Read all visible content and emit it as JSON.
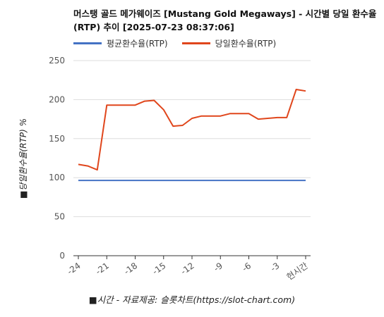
{
  "chart_data": {
    "type": "line",
    "title": "머스탱 골드 메가웨이즈 [Mustang Gold Megaways] - 시간별 당일 환수율(RTP) 추이 [2025-07-23 08:37:06]",
    "ylabel": "■당일환수율(RTP) %",
    "xlabel": "■시간 - 자료제공: 슬롯차트(https://slot-chart.com)",
    "ylim": [
      0,
      250
    ],
    "yticks": [
      0,
      50,
      100,
      150,
      200,
      250
    ],
    "xticks": [
      {
        "x": -24,
        "label": "-24"
      },
      {
        "x": -21,
        "label": "-21"
      },
      {
        "x": -18,
        "label": "-18"
      },
      {
        "x": -15,
        "label": "-15"
      },
      {
        "x": -12,
        "label": "-12"
      },
      {
        "x": -9,
        "label": "-9"
      },
      {
        "x": -6,
        "label": "-6"
      },
      {
        "x": -3,
        "label": "-3"
      },
      {
        "x": 0,
        "label": "현시간"
      }
    ],
    "xlim": [
      -24,
      0
    ],
    "legend": "top-left",
    "grid": "horizontal",
    "series": [
      {
        "name": "평균환수율(RTP)",
        "color": "#4472c4",
        "x": [
          -24,
          0
        ],
        "values": [
          96.5,
          96.5
        ]
      },
      {
        "name": "당일환수율(RTP)",
        "color": "#e0461c",
        "x": [
          -24,
          -23,
          -22,
          -21,
          -20,
          -19,
          -18,
          -17,
          -16,
          -15,
          -14,
          -13,
          -12,
          -11,
          -10,
          -9,
          -8,
          -7,
          -6,
          -5,
          -4,
          -3,
          -2,
          -1,
          0
        ],
        "values": [
          117,
          115,
          110,
          193,
          193,
          193,
          193,
          198,
          199,
          187,
          166,
          167,
          176,
          179,
          179,
          179,
          182,
          182,
          182,
          175,
          176,
          177,
          177,
          213,
          211
        ]
      }
    ]
  }
}
